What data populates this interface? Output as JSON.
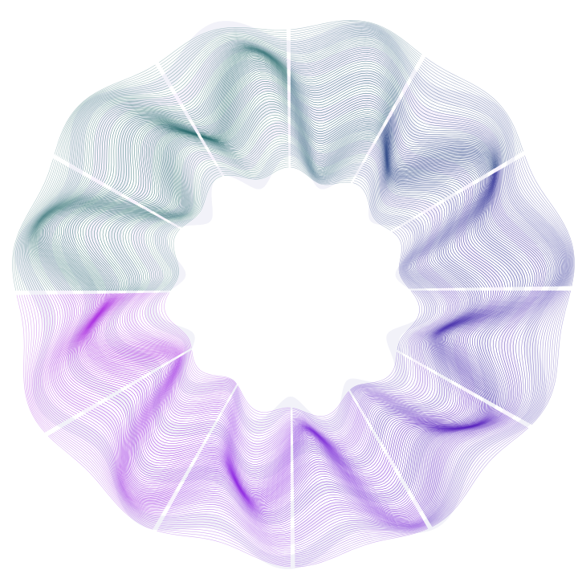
{
  "artwork": {
    "background": "#ffffff",
    "colors": {
      "teal": "#2f6f72",
      "indigo": "#2a1f9a",
      "violet": "#8a2be2",
      "magenta": "#b030e0"
    }
  }
}
